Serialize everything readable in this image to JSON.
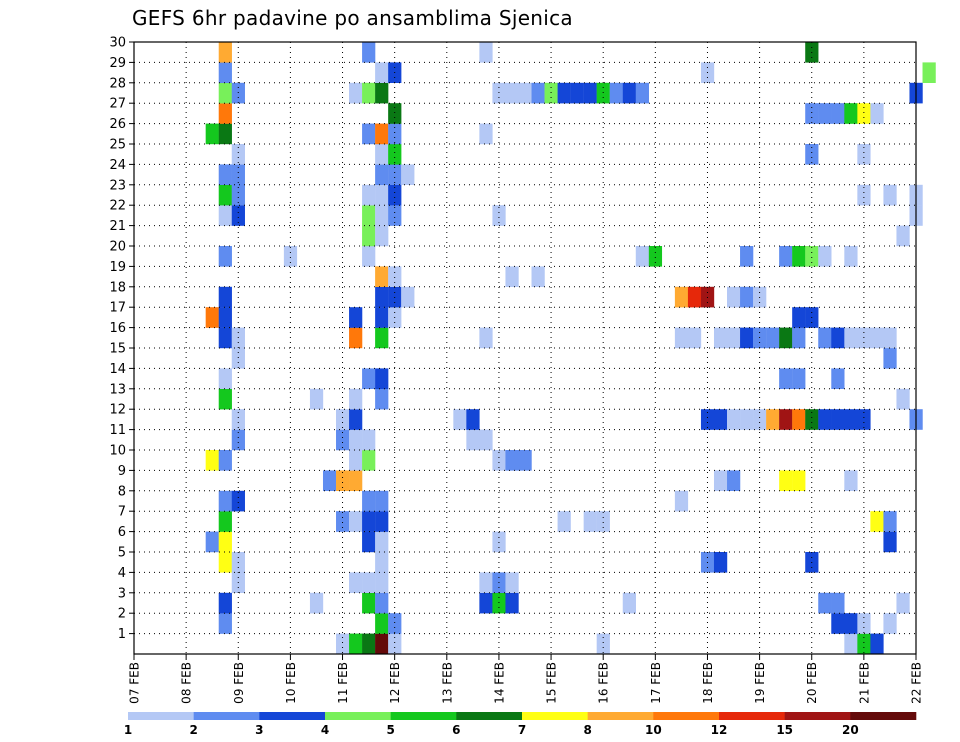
{
  "chart_data": {
    "type": "heatmap",
    "title": "GEFS 6hr padavine po ansamblima Sjenica",
    "xlabel": "",
    "ylabel": "",
    "x_tick_labels": [
      "07 FEB",
      "08 FEB",
      "09 FEB",
      "10 FEB",
      "11 FEB",
      "12 FEB",
      "13 FEB",
      "14 FEB",
      "15 FEB",
      "16 FEB",
      "17 FEB",
      "18 FEB",
      "19 FEB",
      "20 FEB",
      "21 FEB",
      "22 FEB"
    ],
    "xlim": [
      "07 FEB",
      "22 FEB"
    ],
    "time_step_hours": 6,
    "y_tick_labels": [
      "1",
      "2",
      "3",
      "4",
      "5",
      "6",
      "7",
      "8",
      "9",
      "10",
      "11",
      "12",
      "13",
      "14",
      "15",
      "16",
      "17",
      "18",
      "19",
      "20",
      "21",
      "22",
      "23",
      "24",
      "25",
      "26",
      "27",
      "28",
      "29",
      "30"
    ],
    "ylim": [
      0,
      30
    ],
    "grid": true,
    "colorbar": {
      "labels": [
        "1",
        "2",
        "3",
        "4",
        "5",
        "6",
        "7",
        "8",
        "10",
        "12",
        "15",
        "20"
      ],
      "colors": [
        "#b4c8f5",
        "#5f8cf0",
        "#1446d7",
        "#78f05a",
        "#14c81e",
        "#0a7814",
        "#ffff14",
        "#ffaa32",
        "#ff780a",
        "#e6280a",
        "#a01414",
        "#640a0a"
      ]
    },
    "series": [
      {
        "member": 0,
        "cells": [
          [
            "11 FEB 00Z",
            1
          ],
          [
            "11 FEB 06Z",
            5
          ],
          [
            "11 FEB 12Z",
            6
          ],
          [
            "11 FEB 18Z",
            20
          ],
          [
            "12 FEB 00Z",
            1
          ],
          [
            "16 FEB 00Z",
            1
          ],
          [
            "20 FEB 18Z",
            1
          ],
          [
            "21 FEB 00Z",
            5
          ],
          [
            "21 FEB 06Z",
            3
          ]
        ]
      },
      {
        "member": 1,
        "cells": [
          [
            "08 FEB 18Z",
            2
          ],
          [
            "11 FEB 18Z",
            5
          ],
          [
            "12 FEB 00Z",
            2
          ],
          [
            "20 FEB 12Z",
            3
          ],
          [
            "20 FEB 18Z",
            3
          ],
          [
            "21 FEB 00Z",
            1
          ],
          [
            "21 FEB 12Z",
            1
          ]
        ]
      },
      {
        "member": 2,
        "cells": [
          [
            "08 FEB 18Z",
            3
          ],
          [
            "10 FEB 12Z",
            1
          ],
          [
            "11 FEB 12Z",
            5
          ],
          [
            "11 FEB 18Z",
            2
          ],
          [
            "13 FEB 18Z",
            3
          ],
          [
            "14 FEB 00Z",
            5
          ],
          [
            "14 FEB 06Z",
            3
          ],
          [
            "16 FEB 12Z",
            1
          ],
          [
            "20 FEB 06Z",
            2
          ],
          [
            "20 FEB 12Z",
            2
          ],
          [
            "21 FEB 18Z",
            1
          ]
        ]
      },
      {
        "member": 3,
        "cells": [
          [
            "09 FEB 00Z",
            1
          ],
          [
            "11 FEB 06Z",
            1
          ],
          [
            "11 FEB 12Z",
            1
          ],
          [
            "11 FEB 18Z",
            1
          ],
          [
            "13 FEB 18Z",
            1
          ],
          [
            "14 FEB 00Z",
            2
          ],
          [
            "14 FEB 06Z",
            1
          ]
        ]
      },
      {
        "member": 4,
        "cells": [
          [
            "08 FEB 18Z",
            7
          ],
          [
            "09 FEB 00Z",
            1
          ],
          [
            "11 FEB 18Z",
            1
          ],
          [
            "18 FEB 00Z",
            2
          ],
          [
            "18 FEB 06Z",
            3
          ],
          [
            "20 FEB 00Z",
            3
          ]
        ]
      },
      {
        "member": 5,
        "cells": [
          [
            "08 FEB 12Z",
            2
          ],
          [
            "08 FEB 18Z",
            7
          ],
          [
            "11 FEB 12Z",
            3
          ],
          [
            "11 FEB 18Z",
            1
          ],
          [
            "14 FEB 00Z",
            1
          ],
          [
            "21 FEB 12Z",
            3
          ]
        ]
      },
      {
        "member": 6,
        "cells": [
          [
            "08 FEB 18Z",
            5
          ],
          [
            "11 FEB 00Z",
            2
          ],
          [
            "11 FEB 06Z",
            1
          ],
          [
            "11 FEB 12Z",
            3
          ],
          [
            "11 FEB 18Z",
            3
          ],
          [
            "15 FEB 06Z",
            1
          ],
          [
            "15 FEB 18Z",
            1
          ],
          [
            "16 FEB 00Z",
            1
          ],
          [
            "21 FEB 06Z",
            7
          ],
          [
            "21 FEB 12Z",
            2
          ]
        ]
      },
      {
        "member": 7,
        "cells": [
          [
            "08 FEB 18Z",
            2
          ],
          [
            "09 FEB 00Z",
            3
          ],
          [
            "11 FEB 12Z",
            2
          ],
          [
            "11 FEB 18Z",
            2
          ],
          [
            "17 FEB 12Z",
            1
          ]
        ]
      },
      {
        "member": 8,
        "cells": [
          [
            "10 FEB 18Z",
            2
          ],
          [
            "11 FEB 00Z",
            8
          ],
          [
            "11 FEB 06Z",
            8
          ],
          [
            "18 FEB 06Z",
            1
          ],
          [
            "18 FEB 12Z",
            2
          ],
          [
            "19 FEB 12Z",
            7
          ],
          [
            "19 FEB 18Z",
            7
          ],
          [
            "20 FEB 18Z",
            1
          ]
        ]
      },
      {
        "member": 9,
        "cells": [
          [
            "08 FEB 12Z",
            7
          ],
          [
            "08 FEB 18Z",
            2
          ],
          [
            "11 FEB 06Z",
            1
          ],
          [
            "11 FEB 12Z",
            4
          ],
          [
            "14 FEB 00Z",
            1
          ],
          [
            "14 FEB 06Z",
            2
          ],
          [
            "14 FEB 12Z",
            2
          ]
        ]
      },
      {
        "member": 10,
        "cells": [
          [
            "09 FEB 00Z",
            2
          ],
          [
            "11 FEB 00Z",
            2
          ],
          [
            "11 FEB 06Z",
            1
          ],
          [
            "11 FEB 12Z",
            1
          ],
          [
            "13 FEB 12Z",
            1
          ],
          [
            "13 FEB 18Z",
            1
          ]
        ]
      },
      {
        "member": 11,
        "cells": [
          [
            "09 FEB 00Z",
            1
          ],
          [
            "11 FEB 00Z",
            1
          ],
          [
            "11 FEB 06Z",
            3
          ],
          [
            "13 FEB 06Z",
            1
          ],
          [
            "13 FEB 12Z",
            3
          ],
          [
            "18 FEB 00Z",
            3
          ],
          [
            "18 FEB 06Z",
            3
          ],
          [
            "18 FEB 12Z",
            1
          ],
          [
            "18 FEB 18Z",
            1
          ],
          [
            "19 FEB 00Z",
            1
          ],
          [
            "19 FEB 06Z",
            8
          ],
          [
            "19 FEB 12Z",
            15
          ],
          [
            "19 FEB 18Z",
            10
          ],
          [
            "20 FEB 00Z",
            6
          ],
          [
            "20 FEB 06Z",
            3
          ],
          [
            "20 FEB 12Z",
            3
          ],
          [
            "20 FEB 18Z",
            3
          ],
          [
            "21 FEB 00Z",
            3
          ],
          [
            "22 FEB 00Z",
            2
          ]
        ]
      },
      {
        "member": 12,
        "cells": [
          [
            "08 FEB 18Z",
            5
          ],
          [
            "10 FEB 12Z",
            1
          ],
          [
            "11 FEB 06Z",
            1
          ],
          [
            "11 FEB 18Z",
            2
          ],
          [
            "21 FEB 18Z",
            1
          ]
        ]
      },
      {
        "member": 13,
        "cells": [
          [
            "08 FEB 18Z",
            1
          ],
          [
            "11 FEB 12Z",
            2
          ],
          [
            "11 FEB 18Z",
            3
          ],
          [
            "19 FEB 12Z",
            2
          ],
          [
            "19 FEB 18Z",
            2
          ],
          [
            "20 FEB 12Z",
            2
          ]
        ]
      },
      {
        "member": 14,
        "cells": [
          [
            "09 FEB 00Z",
            1
          ],
          [
            "21 FEB 12Z",
            2
          ]
        ]
      },
      {
        "member": 15,
        "cells": [
          [
            "08 FEB 18Z",
            3
          ],
          [
            "09 FEB 00Z",
            1
          ],
          [
            "11 FEB 06Z",
            10
          ],
          [
            "11 FEB 18Z",
            5
          ],
          [
            "13 FEB 18Z",
            1
          ],
          [
            "17 FEB 12Z",
            1
          ],
          [
            "17 FEB 18Z",
            1
          ],
          [
            "18 FEB 06Z",
            1
          ],
          [
            "18 FEB 12Z",
            1
          ],
          [
            "18 FEB 18Z",
            3
          ],
          [
            "19 FEB 00Z",
            2
          ],
          [
            "19 FEB 06Z",
            2
          ],
          [
            "19 FEB 12Z",
            6
          ],
          [
            "19 FEB 18Z",
            2
          ],
          [
            "20 FEB 06Z",
            2
          ],
          [
            "20 FEB 12Z",
            3
          ],
          [
            "20 FEB 18Z",
            1
          ],
          [
            "21 FEB 00Z",
            1
          ],
          [
            "21 FEB 06Z",
            1
          ],
          [
            "21 FEB 12Z",
            1
          ]
        ]
      },
      {
        "member": 16,
        "cells": [
          [
            "08 FEB 12Z",
            10
          ],
          [
            "08 FEB 18Z",
            3
          ],
          [
            "11 FEB 06Z",
            3
          ],
          [
            "11 FEB 18Z",
            3
          ],
          [
            "12 FEB 00Z",
            1
          ],
          [
            "19 FEB 18Z",
            3
          ],
          [
            "20 FEB 00Z",
            3
          ]
        ]
      },
      {
        "member": 17,
        "cells": [
          [
            "08 FEB 18Z",
            3
          ],
          [
            "11 FEB 18Z",
            3
          ],
          [
            "12 FEB 00Z",
            3
          ],
          [
            "12 FEB 06Z",
            1
          ],
          [
            "17 FEB 12Z",
            8
          ],
          [
            "17 FEB 18Z",
            12
          ],
          [
            "18 FEB 00Z",
            15
          ],
          [
            "18 FEB 12Z",
            1
          ],
          [
            "18 FEB 18Z",
            2
          ],
          [
            "19 FEB 00Z",
            1
          ]
        ]
      },
      {
        "member": 18,
        "cells": [
          [
            "11 FEB 18Z",
            8
          ],
          [
            "12 FEB 00Z",
            1
          ],
          [
            "14 FEB 06Z",
            1
          ],
          [
            "14 FEB 18Z",
            1
          ]
        ]
      },
      {
        "member": 19,
        "cells": [
          [
            "08 FEB 18Z",
            2
          ],
          [
            "10 FEB 00Z",
            1
          ],
          [
            "11 FEB 12Z",
            1
          ],
          [
            "16 FEB 18Z",
            1
          ],
          [
            "17 FEB 00Z",
            5
          ],
          [
            "18 FEB 18Z",
            2
          ],
          [
            "19 FEB 12Z",
            2
          ],
          [
            "19 FEB 18Z",
            5
          ],
          [
            "20 FEB 00Z",
            4
          ],
          [
            "20 FEB 06Z",
            1
          ],
          [
            "20 FEB 18Z",
            1
          ]
        ]
      },
      {
        "member": 20,
        "cells": [
          [
            "11 FEB 12Z",
            4
          ],
          [
            "11 FEB 18Z",
            1
          ],
          [
            "21 FEB 18Z",
            1
          ]
        ]
      },
      {
        "member": 21,
        "cells": [
          [
            "08 FEB 18Z",
            1
          ],
          [
            "09 FEB 00Z",
            3
          ],
          [
            "11 FEB 12Z",
            4
          ],
          [
            "11 FEB 18Z",
            1
          ],
          [
            "12 FEB 00Z",
            2
          ],
          [
            "14 FEB 00Z",
            1
          ],
          [
            "22 FEB 00Z",
            1
          ]
        ]
      },
      {
        "member": 22,
        "cells": [
          [
            "08 FEB 18Z",
            5
          ],
          [
            "09 FEB 00Z",
            2
          ],
          [
            "11 FEB 12Z",
            1
          ],
          [
            "11 FEB 18Z",
            1
          ],
          [
            "12 FEB 00Z",
            3
          ],
          [
            "21 FEB 00Z",
            1
          ],
          [
            "21 FEB 12Z",
            1
          ],
          [
            "22 FEB 00Z",
            1
          ]
        ]
      },
      {
        "member": 23,
        "cells": [
          [
            "08 FEB 18Z",
            2
          ],
          [
            "09 FEB 00Z",
            2
          ],
          [
            "11 FEB 18Z",
            2
          ],
          [
            "12 FEB 00Z",
            2
          ],
          [
            "12 FEB 06Z",
            1
          ]
        ]
      },
      {
        "member": 24,
        "cells": [
          [
            "09 FEB 00Z",
            1
          ],
          [
            "11 FEB 18Z",
            1
          ],
          [
            "12 FEB 00Z",
            5
          ],
          [
            "20 FEB 00Z",
            2
          ],
          [
            "21 FEB 00Z",
            1
          ]
        ]
      },
      {
        "member": 25,
        "cells": [
          [
            "08 FEB 12Z",
            5
          ],
          [
            "08 FEB 18Z",
            6
          ],
          [
            "11 FEB 12Z",
            2
          ],
          [
            "11 FEB 18Z",
            10
          ],
          [
            "12 FEB 00Z",
            2
          ],
          [
            "13 FEB 18Z",
            1
          ]
        ]
      },
      {
        "member": 26,
        "cells": [
          [
            "08 FEB 18Z",
            10
          ],
          [
            "12 FEB 00Z",
            6
          ],
          [
            "20 FEB 00Z",
            2
          ],
          [
            "20 FEB 06Z",
            2
          ],
          [
            "20 FEB 12Z",
            2
          ],
          [
            "20 FEB 18Z",
            5
          ],
          [
            "21 FEB 00Z",
            7
          ],
          [
            "21 FEB 06Z",
            1
          ]
        ]
      },
      {
        "member": 27,
        "cells": [
          [
            "08 FEB 18Z",
            4
          ],
          [
            "09 FEB 00Z",
            2
          ],
          [
            "11 FEB 06Z",
            1
          ],
          [
            "11 FEB 12Z",
            4
          ],
          [
            "11 FEB 18Z",
            6
          ],
          [
            "14 FEB 00Z",
            1
          ],
          [
            "14 FEB 06Z",
            1
          ],
          [
            "14 FEB 12Z",
            1
          ],
          [
            "14 FEB 18Z",
            2
          ],
          [
            "15 FEB 00Z",
            4
          ],
          [
            "15 FEB 06Z",
            3
          ],
          [
            "15 FEB 12Z",
            3
          ],
          [
            "15 FEB 18Z",
            3
          ],
          [
            "16 FEB 00Z",
            5
          ],
          [
            "16 FEB 06Z",
            2
          ],
          [
            "16 FEB 12Z",
            3
          ],
          [
            "16 FEB 18Z",
            2
          ],
          [
            "22 FEB 00Z",
            3
          ]
        ]
      },
      {
        "member": 28,
        "cells": [
          [
            "08 FEB 18Z",
            2
          ],
          [
            "11 FEB 18Z",
            1
          ],
          [
            "12 FEB 00Z",
            3
          ],
          [
            "18 FEB 00Z",
            1
          ],
          [
            "22 FEB 06Z",
            4
          ]
        ]
      },
      {
        "member": 29,
        "cells": [
          [
            "08 FEB 18Z",
            8
          ],
          [
            "11 FEB 12Z",
            2
          ],
          [
            "13 FEB 18Z",
            1
          ],
          [
            "20 FEB 00Z",
            6
          ]
        ]
      }
    ]
  }
}
